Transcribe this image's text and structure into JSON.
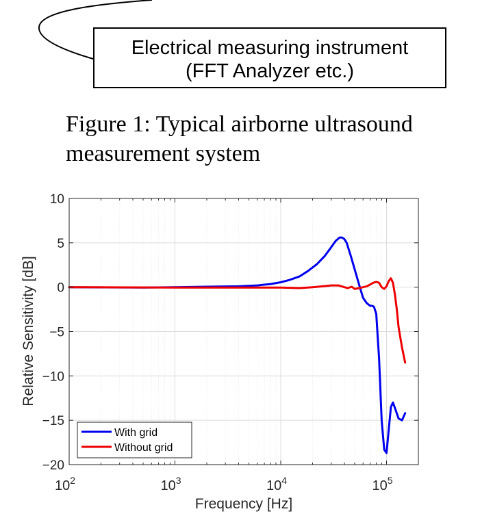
{
  "diagram": {
    "instrument_label_line1": "Electrical measuring instrument",
    "instrument_label_line2": "(FFT Analyzer etc.)"
  },
  "figure_caption": {
    "line1": "Figure 1: Typical airborne ultrasound",
    "line2": "measurement system"
  },
  "chart_data": {
    "type": "line",
    "title": "",
    "xlabel": "Frequency [Hz]",
    "ylabel": "Relative Sensitivity [dB]",
    "xscale": "log",
    "xlim": [
      100,
      200000
    ],
    "ylim": [
      -20,
      10
    ],
    "xticks": [
      {
        "value": 100,
        "base": "10",
        "exp": "2"
      },
      {
        "value": 1000,
        "base": "10",
        "exp": "3"
      },
      {
        "value": 10000,
        "base": "10",
        "exp": "4"
      },
      {
        "value": 100000,
        "base": "10",
        "exp": "5"
      }
    ],
    "yticks": [
      {
        "value": 10,
        "label": "10"
      },
      {
        "value": 5,
        "label": "5"
      },
      {
        "value": 0,
        "label": "0"
      },
      {
        "value": -5,
        "label": "−5"
      },
      {
        "value": -10,
        "label": "−10"
      },
      {
        "value": -15,
        "label": "−15"
      },
      {
        "value": -20,
        "label": "−20"
      }
    ],
    "grid": true,
    "legend": "bottom-left",
    "series": [
      {
        "name": "With grid",
        "color": "#0000ee",
        "x": [
          100,
          500,
          1000,
          2000,
          4000,
          6000,
          8000,
          10000,
          12000,
          15000,
          18000,
          22000,
          26000,
          30000,
          33000,
          36000,
          38000,
          40000,
          42000,
          46000,
          50000,
          55000,
          60000,
          65000,
          70000,
          73000,
          76000,
          80000,
          85000,
          90000,
          95000,
          100000,
          105000,
          110000,
          115000,
          120000,
          130000,
          140000,
          150000
        ],
        "y": [
          0,
          -0.05,
          0,
          0.05,
          0.1,
          0.2,
          0.35,
          0.55,
          0.8,
          1.2,
          1.8,
          2.6,
          3.5,
          4.5,
          5.2,
          5.6,
          5.6,
          5.4,
          5.0,
          3.5,
          2.0,
          0.3,
          -1.2,
          -1.8,
          -2.1,
          -2.1,
          -2.2,
          -3.0,
          -8.0,
          -15.0,
          -18.3,
          -18.7,
          -16.0,
          -13.5,
          -13.0,
          -13.6,
          -14.8,
          -15.0,
          -14.2
        ]
      },
      {
        "name": "Without grid",
        "color": "#ee0000",
        "x": [
          100,
          1000,
          5000,
          10000,
          15000,
          20000,
          25000,
          30000,
          35000,
          40000,
          43000,
          47000,
          50000,
          55000,
          60000,
          65000,
          70000,
          75000,
          80000,
          85000,
          90000,
          95000,
          100000,
          105000,
          110000,
          115000,
          120000,
          125000,
          130000,
          140000,
          150000
        ],
        "y": [
          0,
          -0.05,
          -0.05,
          -0.05,
          -0.1,
          0,
          0.1,
          0.2,
          0.2,
          0,
          -0.1,
          0.05,
          -0.2,
          -0.1,
          0,
          0.1,
          0.3,
          0.5,
          0.6,
          0.5,
          0.0,
          -0.2,
          0.1,
          0.7,
          1.0,
          0.5,
          -0.8,
          -2.5,
          -4.5,
          -6.8,
          -8.5
        ]
      }
    ]
  }
}
